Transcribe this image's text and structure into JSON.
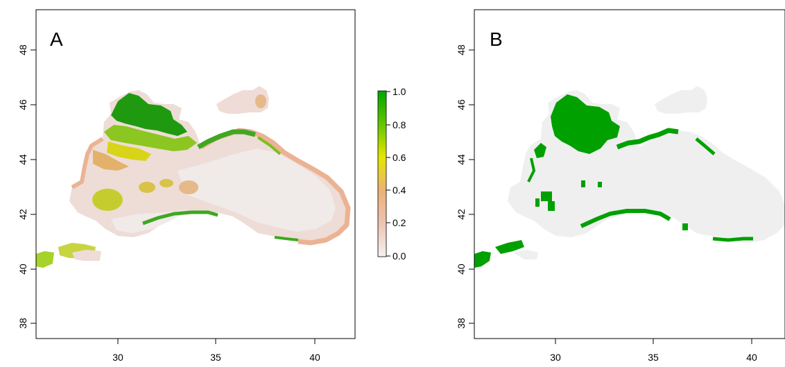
{
  "panels": [
    {
      "id": "A",
      "label": "A",
      "x_ticks": [
        "30",
        "35",
        "40"
      ],
      "y_ticks": [
        "38",
        "40",
        "42",
        "44",
        "46",
        "48"
      ],
      "map_type": "continuous suitability raster",
      "legend": {
        "ticks": [
          "1.0",
          "0.8",
          "0.6",
          "0.4",
          "0.2",
          "0.0"
        ],
        "colors": [
          "#00A600",
          "#63C600",
          "#E6E600",
          "#E8C32E",
          "#ECB176",
          "#EFC2B3",
          "#F2F2F2"
        ]
      }
    },
    {
      "id": "B",
      "label": "B",
      "x_ticks": [
        "30",
        "35",
        "40"
      ],
      "y_ticks": [
        "38",
        "40",
        "42",
        "44",
        "46",
        "48"
      ],
      "map_type": "binary presence raster",
      "colors": {
        "presence": "#00A000",
        "absence": "#EFEFEF"
      }
    }
  ]
}
